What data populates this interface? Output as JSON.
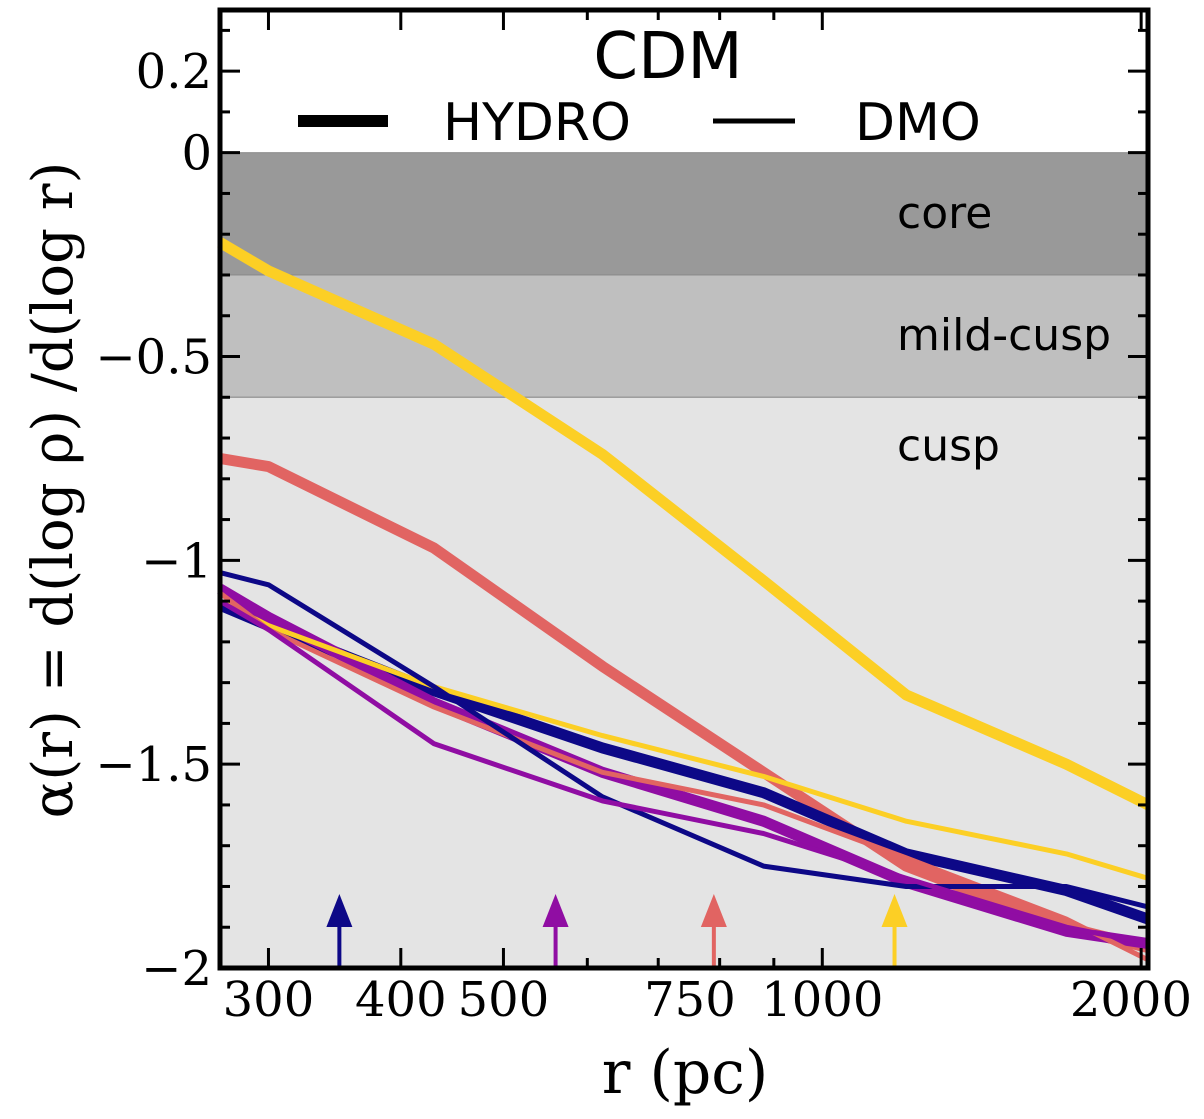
{
  "chart_data": {
    "type": "line",
    "title": "CDM",
    "xlabel": "r (pc)",
    "ylabel": "α(r) = d(log ρ) /d(log r)",
    "xscale": "log",
    "xlim": [
      270,
      2030
    ],
    "ylim": [
      -2,
      0.35
    ],
    "xticks": [
      300,
      400,
      500,
      750,
      1000,
      2000
    ],
    "xtick_labels": [
      "300",
      "400",
      "500",
      "750",
      "1000",
      "2000"
    ],
    "yticks": [
      0.2,
      0,
      -0.5,
      -1,
      -1.5,
      -2
    ],
    "ytick_labels": [
      "0.2",
      "0",
      "−0.5",
      "−1",
      "−1.5",
      "−2"
    ],
    "legend": {
      "position": "top",
      "entries": [
        {
          "label": "HYDRO",
          "style": "thick"
        },
        {
          "label": "DMO",
          "style": "thin"
        }
      ]
    },
    "regions": [
      {
        "label": "core",
        "y0": -0.3,
        "y1": 0,
        "color": "#999999"
      },
      {
        "label": "mild-cusp",
        "y0": -0.6,
        "y1": -0.3,
        "color": "#bfbfbf"
      },
      {
        "label": "cusp",
        "y0": -2,
        "y1": -0.6,
        "color": "#e4e4e4"
      }
    ],
    "series": [
      {
        "name": "yellow HYDRO",
        "kind": "HYDRO",
        "color": "#fccf25",
        "x": [
          270,
          300,
          430,
          620,
          880,
          1200,
          1700,
          2030
        ],
        "y": [
          -0.22,
          -0.29,
          -0.47,
          -0.74,
          -1.05,
          -1.33,
          -1.5,
          -1.6
        ]
      },
      {
        "name": "red HYDRO",
        "kind": "HYDRO",
        "color": "#e16462",
        "x": [
          270,
          300,
          430,
          620,
          880,
          1200,
          1700,
          2030
        ],
        "y": [
          -0.75,
          -0.77,
          -0.97,
          -1.26,
          -1.52,
          -1.75,
          -1.9,
          -1.95
        ]
      },
      {
        "name": "navy HYDRO",
        "kind": "HYDRO",
        "color": "#0d0887",
        "x": [
          270,
          300,
          430,
          620,
          880,
          1200,
          1700,
          2030
        ],
        "y": [
          -1.11,
          -1.16,
          -1.32,
          -1.46,
          -1.57,
          -1.72,
          -1.81,
          -1.88
        ]
      },
      {
        "name": "purple HYDRO",
        "kind": "HYDRO",
        "color": "#900da3",
        "x": [
          270,
          300,
          430,
          620,
          880,
          1200,
          1700,
          2030
        ],
        "y": [
          -1.07,
          -1.14,
          -1.35,
          -1.52,
          -1.64,
          -1.79,
          -1.91,
          -1.94
        ]
      },
      {
        "name": "yellow DMO",
        "kind": "DMO",
        "color": "#fccf25",
        "x": [
          270,
          300,
          430,
          620,
          880,
          1200,
          1700,
          2030
        ],
        "y": [
          -1.1,
          -1.16,
          -1.31,
          -1.43,
          -1.53,
          -1.64,
          -1.72,
          -1.78
        ]
      },
      {
        "name": "red DMO",
        "kind": "DMO",
        "color": "#e16462",
        "x": [
          270,
          300,
          430,
          620,
          880,
          1200,
          1700,
          2030
        ],
        "y": [
          -1.08,
          -1.17,
          -1.36,
          -1.52,
          -1.6,
          -1.73,
          -1.88,
          -1.98
        ]
      },
      {
        "name": "navy DMO",
        "kind": "DMO",
        "color": "#0d0887",
        "x": [
          270,
          300,
          430,
          620,
          880,
          1200,
          1700,
          2030
        ],
        "y": [
          -1.03,
          -1.06,
          -1.31,
          -1.58,
          -1.75,
          -1.8,
          -1.8,
          -1.85
        ]
      },
      {
        "name": "purple DMO",
        "kind": "DMO",
        "color": "#900da3",
        "x": [
          270,
          300,
          430,
          620,
          880,
          1200,
          1700,
          2030
        ],
        "y": [
          -1.1,
          -1.17,
          -1.45,
          -1.59,
          -1.67,
          -1.78,
          -1.9,
          -1.94
        ]
      }
    ],
    "arrows": [
      {
        "x": 350,
        "color": "#0d0887"
      },
      {
        "x": 560,
        "color": "#900da3"
      },
      {
        "x": 790,
        "color": "#e16462"
      },
      {
        "x": 1170,
        "color": "#fccf25"
      }
    ]
  }
}
